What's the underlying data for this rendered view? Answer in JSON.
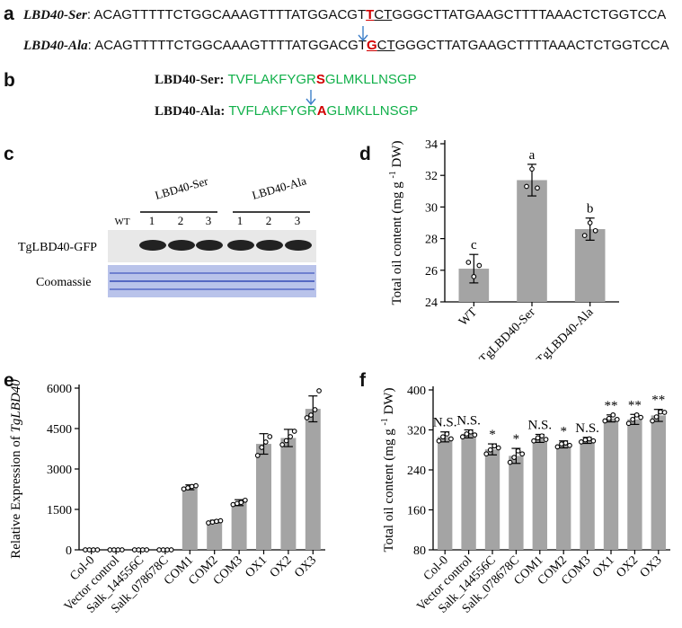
{
  "panels": {
    "a": "a",
    "b": "b",
    "c": "c",
    "d": "d",
    "e": "e",
    "f": "f"
  },
  "sequences": [
    {
      "name": "LBD40-Ser",
      "pre": "ACAGTTTTTCTGGCAAAGTTTTATGGACGT",
      "mut": "T",
      "ul": "CT",
      "post": "GGGCTTATGAAGCTTTTAAACTCTGGTCCA"
    },
    {
      "name": "LBD40-Ala",
      "pre": "ACAGTTTTTCTGGCAAAGTTTTATGGACGT",
      "mut": "G",
      "ul": "CT",
      "post": "GGGCTTATGAAGCTTTTAAACTCTGGTCCA"
    }
  ],
  "peptides": [
    {
      "name": "LBD40-Ser:",
      "pre": "TVFLAKFYGR",
      "mut": "S",
      "post": "GLMKLLNSGP"
    },
    {
      "name": "LBD40-Ala:",
      "pre": "TVFLAKFYGR",
      "mut": "A",
      "post": "GLMKLLNSGP"
    }
  ],
  "blot": {
    "group_labels": [
      "LBD40-Ser",
      "LBD40-Ala"
    ],
    "lanes": [
      "WT",
      "1",
      "2",
      "3",
      "1",
      "2",
      "3"
    ],
    "row_labels": [
      "TgLBD40-GFP",
      "Coomassie"
    ]
  },
  "chart_data": [
    {
      "id": "d",
      "type": "bar",
      "categories": [
        "WT",
        "TgLBD40-Ser",
        "TgLBD40-Ala"
      ],
      "values": [
        26.1,
        31.7,
        28.6
      ],
      "errors": [
        0.9,
        1.0,
        0.7
      ],
      "points": [
        [
          26.5,
          25.6,
          26.3
        ],
        [
          31.3,
          32.4,
          31.2
        ],
        [
          28.2,
          29.0,
          28.5
        ]
      ],
      "letters": [
        "c",
        "a",
        "b"
      ],
      "ylabel": "Total oil content (mg g-1 DW)",
      "ylim": [
        24,
        34
      ],
      "yticks": [
        24,
        26,
        28,
        30,
        32,
        34
      ]
    },
    {
      "id": "e",
      "type": "bar",
      "categories": [
        "Col-0",
        "Vector control",
        "Salk_144556C",
        "Salk_078678C",
        "COM1",
        "COM2",
        "COM3",
        "OX1",
        "OX2",
        "OX3"
      ],
      "values": [
        0,
        0,
        0,
        0,
        2320,
        1050,
        1750,
        3930,
        4150,
        5230
      ],
      "errors": [
        0,
        0,
        0,
        0,
        90,
        50,
        110,
        380,
        320,
        480
      ],
      "points": [
        [
          0,
          0,
          0,
          0
        ],
        [
          0,
          0,
          0,
          0
        ],
        [
          0,
          0,
          0,
          0
        ],
        [
          0,
          0,
          0,
          0
        ],
        [
          2260,
          2300,
          2350,
          2380
        ],
        [
          1000,
          1030,
          1060,
          1080
        ],
        [
          1680,
          1720,
          1760,
          1840
        ],
        [
          3500,
          3800,
          4000,
          4200
        ],
        [
          3900,
          4050,
          4200,
          4400
        ],
        [
          4900,
          5000,
          5200,
          5900
        ]
      ],
      "ylabel": "Relative Expression of TgLBD40",
      "ylim": [
        0,
        6000
      ],
      "yticks": [
        0,
        1500,
        3000,
        4500,
        6000
      ]
    },
    {
      "id": "f",
      "type": "bar",
      "categories": [
        "Col-0",
        "Vector control",
        "Salk_144556C",
        "Salk_078678C",
        "COM1",
        "COM2",
        "COM3",
        "OX1",
        "OX2",
        "OX3"
      ],
      "values": [
        306,
        312,
        281,
        268,
        303,
        291,
        299,
        343,
        341,
        349
      ],
      "errors": [
        10,
        8,
        11,
        15,
        8,
        7,
        6,
        7,
        10,
        12
      ],
      "points": [
        [
          298,
          306,
          312,
          302
        ],
        [
          306,
          312,
          316,
          310
        ],
        [
          272,
          280,
          288,
          284
        ],
        [
          255,
          265,
          278,
          272
        ],
        [
          298,
          304,
          308,
          301
        ],
        [
          286,
          292,
          294,
          289
        ],
        [
          296,
          300,
          302,
          298
        ],
        [
          338,
          343,
          350,
          341
        ],
        [
          333,
          341,
          350,
          345
        ],
        [
          338,
          346,
          356,
          355
        ]
      ],
      "sig": [
        "N.S.",
        "N.S.",
        "*",
        "*",
        "N.S.",
        "*",
        "N.S.",
        "**",
        "**",
        "**"
      ],
      "ylabel": "Total oil content (mg g-1 DW)",
      "ylim": [
        80,
        400
      ],
      "yticks": [
        80,
        160,
        240,
        320,
        400
      ]
    }
  ]
}
